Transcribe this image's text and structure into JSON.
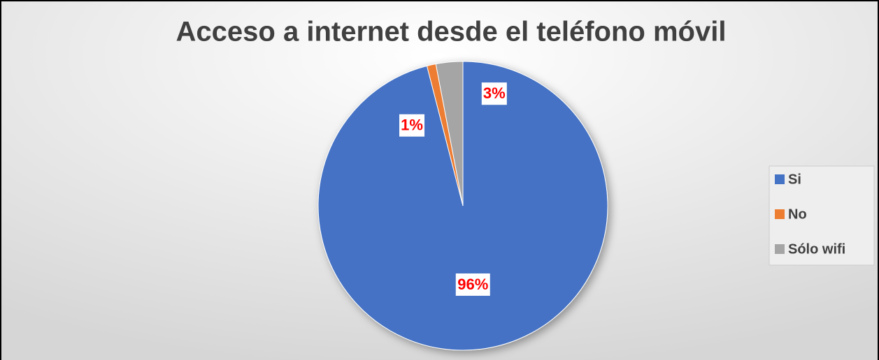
{
  "chart_data": {
    "type": "pie",
    "title": "Acceso a internet desde el teléfono móvil",
    "categories": [
      "Si",
      "No",
      "Sólo wifi"
    ],
    "values": [
      96,
      1,
      3
    ],
    "value_labels": [
      "96%",
      "1%",
      "3%"
    ],
    "colors": [
      "#4472c4",
      "#ed7d31",
      "#a5a5a5"
    ],
    "legend": "right"
  }
}
